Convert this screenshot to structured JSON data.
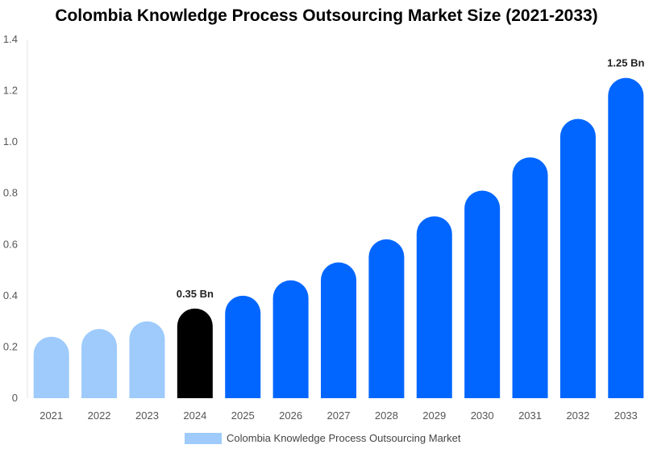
{
  "chart_data": {
    "type": "bar",
    "title": "Colombia Knowledge Process Outsourcing Market Size (2021-2033)",
    "xlabel": "",
    "ylabel": "",
    "categories": [
      "2021",
      "2022",
      "2023",
      "2024",
      "2025",
      "2026",
      "2027",
      "2028",
      "2029",
      "2030",
      "2031",
      "2032",
      "2033"
    ],
    "series": [
      {
        "name": "Colombia Knowledge Process Outsourcing Market",
        "values": [
          0.24,
          0.27,
          0.3,
          0.35,
          0.4,
          0.46,
          0.53,
          0.62,
          0.71,
          0.81,
          0.94,
          1.09,
          1.25
        ]
      }
    ],
    "ylim": [
      0,
      1.4
    ],
    "yticks": [
      "0",
      "0.2",
      "0.4",
      "0.6",
      "0.8",
      "1.0",
      "1.2",
      "1.4"
    ],
    "grid": false,
    "legend_position": "bottom",
    "annotations": [
      {
        "category": "2024",
        "text": "0.35 Bn"
      },
      {
        "category": "2033",
        "text": "1.25 Bn"
      }
    ],
    "colors": {
      "historical": "#9ecbfb",
      "current": "#000000",
      "forecast": "#0066ff"
    },
    "bar_color_groups": [
      "historical",
      "historical",
      "historical",
      "current",
      "forecast",
      "forecast",
      "forecast",
      "forecast",
      "forecast",
      "forecast",
      "forecast",
      "forecast",
      "forecast"
    ]
  }
}
